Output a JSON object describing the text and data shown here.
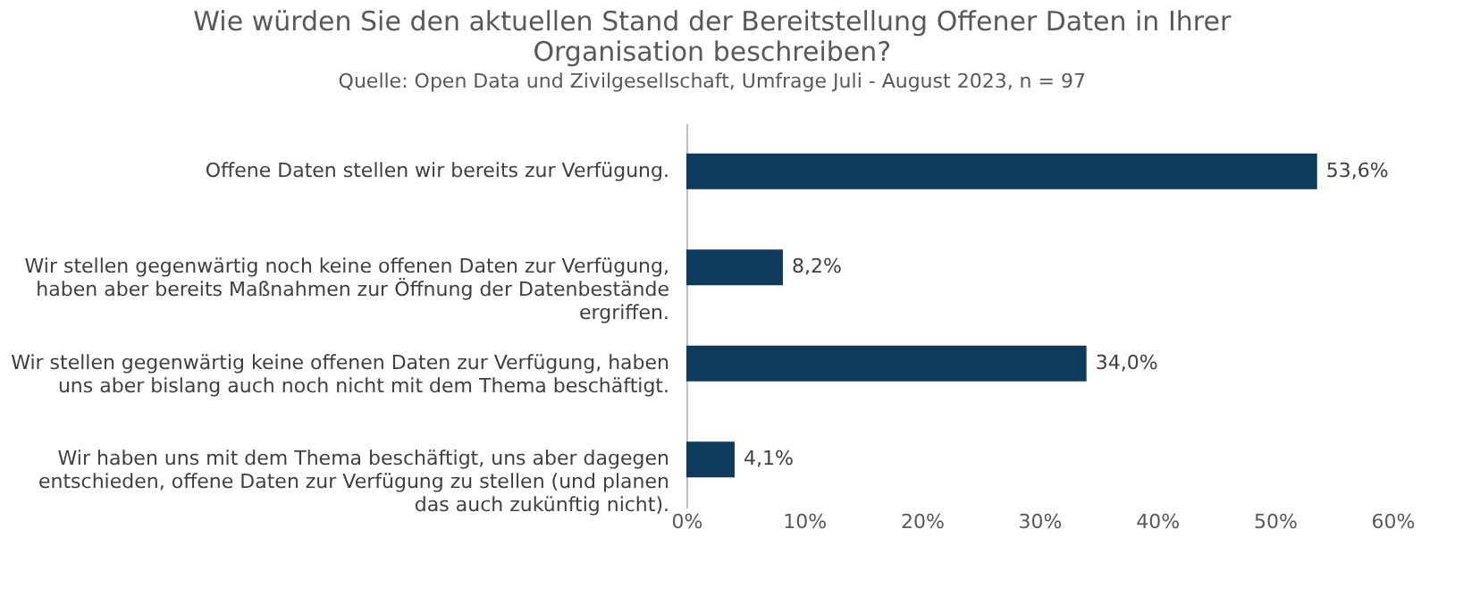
{
  "chart_data": {
    "type": "bar",
    "orientation": "horizontal",
    "title": "Wie würden Sie den aktuellen Stand der Bereitstellung Offener Daten in Ihrer Organisation beschreiben?",
    "subtitle": "Quelle: Open Data und Zivilgesellschaft, Umfrage Juli - August 2023, n = 97",
    "categories": [
      "Offene Daten stellen wir bereits zur Verfügung.",
      "Wir stellen gegenwärtig noch keine offenen Daten zur Verfügung, haben aber bereits Maßnahmen zur Öffnung der Datenbestände ergriffen.",
      "Wir stellen gegenwärtig keine offenen Daten zur Verfügung, haben uns aber bislang auch noch nicht mit dem Thema beschäftigt.",
      "Wir haben uns mit dem Thema beschäftigt, uns aber dagegen entschieden, offene Daten zur Verfügung zu stellen (und planen das auch zukünftig nicht)."
    ],
    "values": [
      53.6,
      8.2,
      34.0,
      4.1
    ],
    "value_labels": [
      "53,6%",
      "8,2%",
      "34,0%",
      "4,1%"
    ],
    "color": "#0e3a5c",
    "xlim": [
      0,
      60
    ],
    "xticks": [
      {
        "value": 0,
        "label": "0%"
      },
      {
        "value": 10,
        "label": "10%"
      },
      {
        "value": 20,
        "label": "20%"
      },
      {
        "value": 30,
        "label": "30%"
      },
      {
        "value": 40,
        "label": "40%"
      },
      {
        "value": 50,
        "label": "50%"
      },
      {
        "value": 60,
        "label": "60%"
      }
    ],
    "grid": false
  }
}
